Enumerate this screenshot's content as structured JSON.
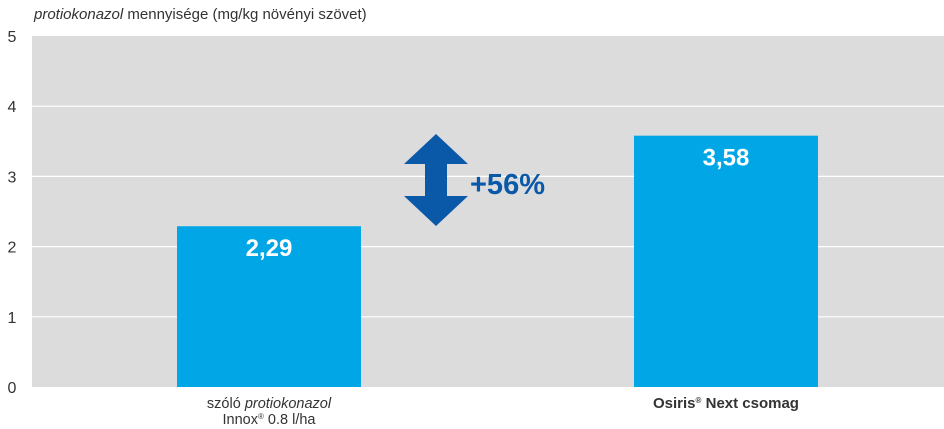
{
  "chart_data": {
    "type": "bar",
    "y_title_italic": "protiokonazol",
    "y_title_rest": " mennyisége (mg/kg növényi szövet)",
    "ylim": [
      0,
      5
    ],
    "yticks": [
      0,
      1,
      2,
      3,
      4,
      5
    ],
    "grid": true,
    "categories": [
      {
        "line1_pre": "szóló ",
        "line1_italic": "protiokonazol",
        "line2_pre": "Innox",
        "line2_sup": "®",
        "line2_post": " 0.8 l/ha"
      },
      {
        "line1_pre": "Osiris",
        "line1_sup": "®",
        "line1_post": " Next csomag"
      }
    ],
    "values": [
      2.29,
      3.58
    ],
    "value_labels": [
      "2,29",
      "3,58"
    ],
    "annotation": "+56%"
  },
  "colors": {
    "plot_background": "#dcdcdd",
    "bar": "#00a6e6",
    "arrow": "#0a58a8",
    "annotation_text": "#0a58a8",
    "gridline": "#ffffff"
  }
}
